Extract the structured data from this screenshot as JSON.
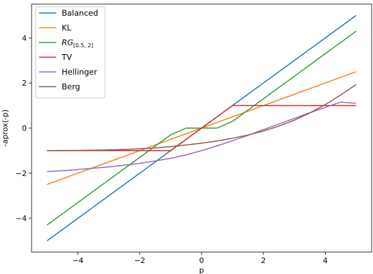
{
  "chart_data": {
    "type": "line",
    "title": "",
    "xlabel": "p",
    "ylabel": "-aprox(-p)",
    "xlim": [
      -5.5,
      5.5
    ],
    "ylim": [
      -5.5,
      5.5
    ],
    "xticks": [
      -4,
      -2,
      0,
      2,
      4
    ],
    "yticks": [
      -4,
      -2,
      0,
      2,
      4
    ],
    "xtick_labels": [
      "−4",
      "−2",
      "0",
      "2",
      "4"
    ],
    "ytick_labels": [
      "−4",
      "−2",
      "0",
      "2",
      "4"
    ],
    "grid": false,
    "legend_position": "top-left",
    "x": [
      -5,
      -4.5,
      -4,
      -3.5,
      -3,
      -2.5,
      -2,
      -1.5,
      -1,
      -0.5,
      0,
      0.5,
      1,
      1.5,
      2,
      2.5,
      3,
      3.5,
      4,
      4.5,
      5
    ],
    "series": [
      {
        "name": "Balanced",
        "color": "#1f77b4",
        "values": [
          -5,
          -4.5,
          -4,
          -3.5,
          -3,
          -2.5,
          -2,
          -1.5,
          -1,
          -0.5,
          0,
          0.5,
          1,
          1.5,
          2,
          2.5,
          3,
          3.5,
          4,
          4.5,
          5
        ]
      },
      {
        "name": "KL",
        "color": "#ff7f0e",
        "values": [
          -2.5,
          -2.25,
          -2,
          -1.75,
          -1.5,
          -1.25,
          -1,
          -0.75,
          -0.5,
          -0.25,
          0,
          0.25,
          0.5,
          0.75,
          1,
          1.25,
          1.5,
          1.75,
          2,
          2.25,
          2.5
        ]
      },
      {
        "name": "RG",
        "name_subscript": "[0.5, 2]",
        "color": "#2ca02c",
        "values": [
          -4.3,
          -3.8,
          -3.3,
          -2.8,
          -2.3,
          -1.8,
          -1.3,
          -0.8,
          -0.3,
          0,
          0,
          0,
          0.3,
          0.8,
          1.3,
          1.8,
          2.3,
          2.8,
          3.3,
          3.8,
          4.3
        ]
      },
      {
        "name": "TV",
        "color": "#d62728",
        "values": [
          -1,
          -1,
          -1,
          -1,
          -1,
          -1,
          -1,
          -1,
          -1,
          -0.5,
          0,
          0.5,
          1,
          1,
          1,
          1,
          1,
          1,
          1,
          1,
          1
        ]
      },
      {
        "name": "Hellinger",
        "color": "#9467bd",
        "values": [
          -1.93,
          -1.89,
          -1.84,
          -1.78,
          -1.72,
          -1.65,
          -1.56,
          -1.46,
          -1.34,
          -1.19,
          -1.0,
          -0.79,
          -0.56,
          -0.32,
          -0.07,
          0.18,
          0.43,
          0.68,
          0.92,
          1.15,
          1.1
        ]
      },
      {
        "name": "Berg",
        "color": "#8c564b",
        "values": [
          -1.0,
          -0.99,
          -0.99,
          -0.98,
          -0.97,
          -0.95,
          -0.92,
          -0.88,
          -0.82,
          -0.75,
          -0.67,
          -0.57,
          -0.45,
          -0.31,
          -0.13,
          0.09,
          0.35,
          0.67,
          1.04,
          1.47,
          1.93
        ]
      }
    ]
  }
}
